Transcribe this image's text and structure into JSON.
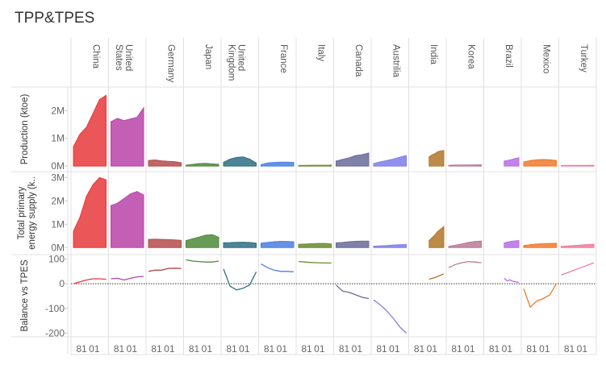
{
  "title": "TPP&TPES",
  "chart_data": {
    "type": "area",
    "x_tick_labels": [
      "81",
      "01"
    ],
    "countries": [
      "China",
      "United States",
      "Germany",
      "Japan",
      "United Kingdom",
      "France",
      "Italy",
      "Canada",
      "Austrilia",
      "India",
      "Korea",
      "Brazil",
      "Mexico",
      "Turkey"
    ],
    "colors": [
      "#e8383b",
      "#b844a9",
      "#b54b4b",
      "#4f8a3b",
      "#2e6e84",
      "#4a7fe0",
      "#6b8a2f",
      "#6a6a9a",
      "#7e7ee8",
      "#b0772a",
      "#b97a96",
      "#b86ee6",
      "#f07a2b",
      "#f07a9a"
    ],
    "start_fraction": [
      0.0,
      0.0,
      0.0,
      0.0,
      0.0,
      0.0,
      0.0,
      0.0,
      0.0,
      0.55,
      0.0,
      0.55,
      0.0,
      0.0
    ],
    "rows": [
      {
        "label": "Production (ktoe)",
        "ticks": [
          "2M",
          "1M",
          "0M"
        ],
        "tick_values": [
          2000000,
          1000000,
          0
        ],
        "ylim": [
          -200000,
          2850000
        ],
        "series": [
          [
            700000,
            1150000,
            1400000,
            1900000,
            2400000,
            2550000
          ],
          [
            1600000,
            1720000,
            1640000,
            1700000,
            1760000,
            2100000
          ],
          [
            200000,
            220000,
            190000,
            170000,
            160000,
            120000
          ],
          [
            30000,
            60000,
            90000,
            100000,
            80000,
            60000
          ],
          [
            130000,
            250000,
            310000,
            330000,
            250000,
            110000
          ],
          [
            50000,
            110000,
            130000,
            140000,
            140000,
            130000
          ],
          [
            20000,
            25000,
            30000,
            30000,
            30000,
            35000
          ],
          [
            180000,
            240000,
            300000,
            380000,
            410000,
            470000
          ],
          [
            90000,
            150000,
            200000,
            250000,
            320000,
            380000
          ],
          [
            330000,
            400000,
            450000,
            520000,
            550000,
            560000
          ],
          [
            30000,
            35000,
            40000,
            42000,
            45000,
            48000
          ],
          [
            180000,
            200000,
            220000,
            250000,
            280000,
            300000
          ],
          [
            150000,
            200000,
            230000,
            240000,
            230000,
            200000
          ],
          [
            20000,
            24000,
            26000,
            27000,
            28000,
            30000
          ]
        ]
      },
      {
        "label": "Total primary energy supply (k..",
        "ticks": [
          "3M",
          "2M",
          "1M",
          "0M"
        ],
        "tick_values": [
          3000000,
          2000000,
          1000000,
          0
        ],
        "ylim": [
          -300000,
          3250000
        ],
        "series": [
          [
            700000,
            1300000,
            2200000,
            2700000,
            3000000,
            2900000
          ],
          [
            1800000,
            1900000,
            2100000,
            2300000,
            2400000,
            2250000
          ],
          [
            350000,
            360000,
            350000,
            340000,
            330000,
            310000
          ],
          [
            300000,
            380000,
            450000,
            530000,
            550000,
            440000
          ],
          [
            210000,
            215000,
            225000,
            230000,
            220000,
            190000
          ],
          [
            190000,
            220000,
            250000,
            270000,
            265000,
            250000
          ],
          [
            140000,
            150000,
            165000,
            180000,
            180000,
            160000
          ],
          [
            200000,
            220000,
            250000,
            270000,
            280000,
            280000
          ],
          [
            60000,
            75000,
            90000,
            110000,
            125000,
            130000
          ],
          [
            300000,
            420000,
            550000,
            700000,
            800000,
            900000
          ],
          [
            50000,
            100000,
            160000,
            220000,
            260000,
            280000
          ],
          [
            200000,
            230000,
            260000,
            280000,
            290000,
            300000
          ],
          [
            90000,
            120000,
            150000,
            170000,
            180000,
            185000
          ],
          [
            50000,
            70000,
            90000,
            110000,
            130000,
            140000
          ]
        ]
      },
      {
        "label": "Balance vs TPES",
        "ticks": [
          "100",
          "0",
          "-100",
          "-200"
        ],
        "tick_values": [
          100,
          0,
          -100,
          -200
        ],
        "ylim": [
          -215,
          118
        ],
        "series": [
          [
            0,
            8,
            15,
            20,
            20,
            18
          ],
          [
            20,
            22,
            15,
            22,
            28,
            30
          ],
          [
            50,
            55,
            55,
            62,
            63,
            62
          ],
          [
            97,
            92,
            90,
            88,
            88,
            92
          ],
          [
            60,
            -10,
            -25,
            -18,
            -5,
            48
          ],
          [
            80,
            65,
            55,
            50,
            50,
            48
          ],
          [
            90,
            88,
            86,
            85,
            84,
            84
          ],
          [
            -5,
            -30,
            -35,
            -45,
            -55,
            -60
          ],
          [
            -65,
            -85,
            -110,
            -140,
            -175,
            -200
          ],
          [
            18,
            22,
            25,
            30,
            35,
            40
          ],
          [
            65,
            78,
            85,
            90,
            88,
            85
          ],
          [
            22,
            12,
            15,
            10,
            8,
            5
          ],
          [
            -20,
            -95,
            -70,
            -60,
            -45,
            0
          ],
          [
            35,
            45,
            55,
            65,
            75,
            85
          ]
        ]
      }
    ]
  }
}
